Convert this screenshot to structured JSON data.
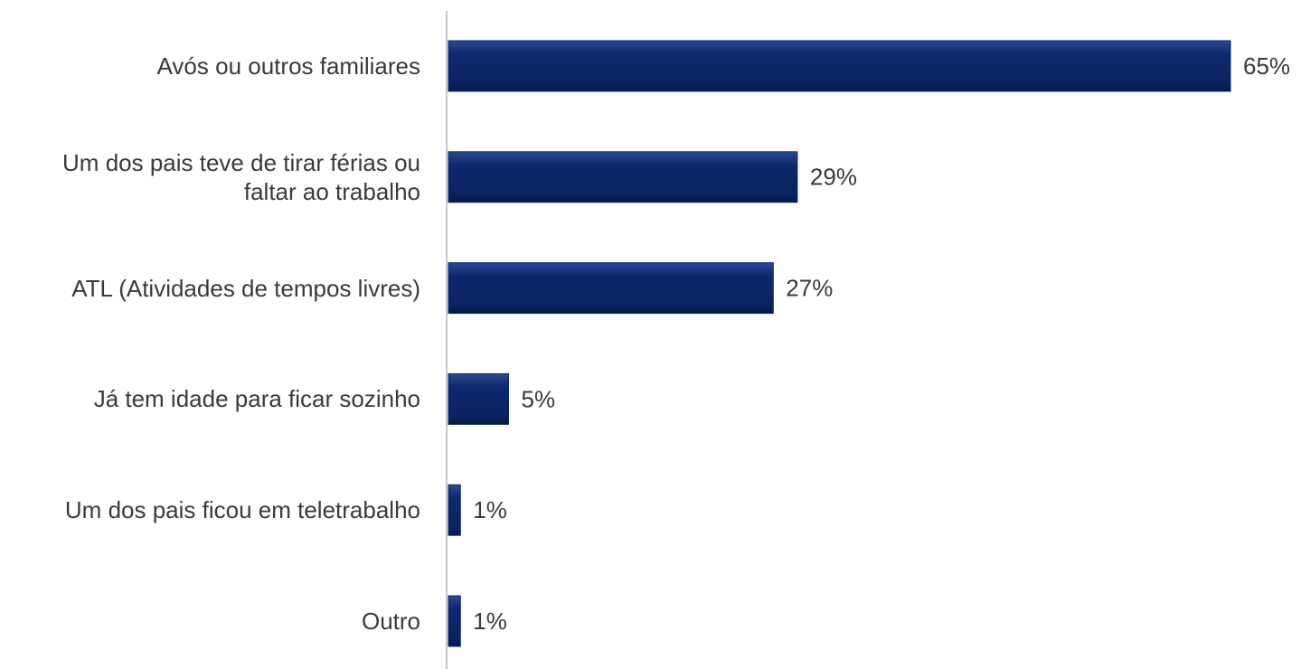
{
  "chart_data": {
    "type": "barh",
    "categories": [
      "Avós ou outros familiares",
      "Um dos pais teve de tirar férias ou\nfaltar ao trabalho",
      "ATL (Atividades de tempos livres)",
      "Já tem idade para ficar sozinho",
      "Um dos pais ficou em teletrabalho",
      "Outro"
    ],
    "values": [
      65,
      29,
      27,
      5,
      1,
      1
    ],
    "value_labels": [
      "65%",
      "29%",
      "27%",
      "5%",
      "1%",
      "1%"
    ],
    "color": "#0d2a6e"
  }
}
